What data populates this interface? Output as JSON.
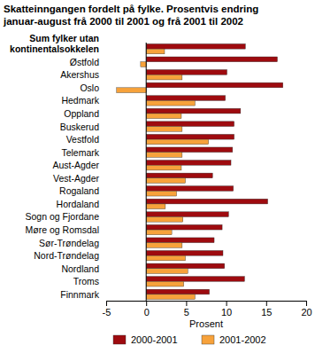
{
  "chart_data": {
    "type": "bar",
    "orientation": "horizontal",
    "title": "Skatteinngangen fordelt på fylke. Prosentvis endring januar-august frå 2000 til 2001 og frå 2001 til 2002",
    "x_label": "Prosent",
    "categories": [
      "Sum fylker utan kontinentalsokkelen",
      "Østfold",
      "Akershus",
      "Oslo",
      "Hedmark",
      "Oppland",
      "Buskerud",
      "Vestfold",
      "Telemark",
      "Aust-Agder",
      "Vest-Agder",
      "Rogaland",
      "Hordaland",
      "Sogn og Fjordane",
      "Møre og Romsdal",
      "Sør-Trøndelag",
      "Nord-Trøndelag",
      "Nordland",
      "Troms",
      "Finnmark"
    ],
    "series": [
      {
        "name": "2000-2001",
        "color": "#9e0b0f",
        "values": [
          12.4,
          16.4,
          10.1,
          17.1,
          9.9,
          11.8,
          11.0,
          11.0,
          10.8,
          10.6,
          8.3,
          10.9,
          15.2,
          10.3,
          9.5,
          8.5,
          9.6,
          9.8,
          12.3,
          7.9
        ]
      },
      {
        "name": "2001-2002",
        "color": "#f7a23b",
        "values": [
          2.3,
          -0.7,
          4.5,
          -3.7,
          6.1,
          4.4,
          4.5,
          7.8,
          4.5,
          4.4,
          4.9,
          3.8,
          2.4,
          4.6,
          3.2,
          4.5,
          4.9,
          5.2,
          4.7,
          6.1
        ]
      }
    ],
    "xlim": [
      -5,
      20
    ],
    "xticks": [
      -5,
      0,
      5,
      10,
      15,
      20
    ],
    "grid": false,
    "legend": "bottom"
  }
}
